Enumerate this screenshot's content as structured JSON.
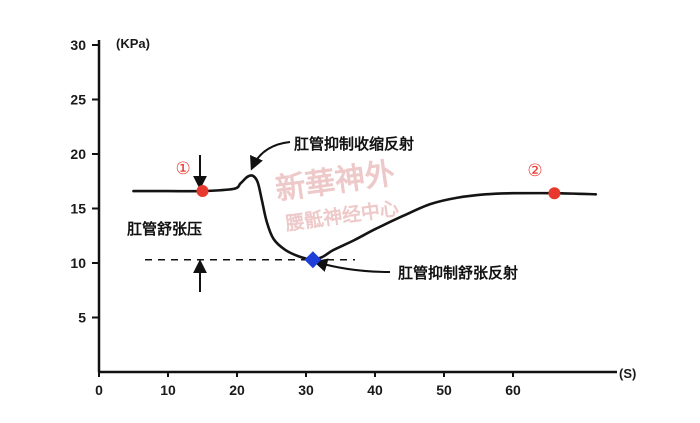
{
  "chart_data": {
    "type": "line",
    "y_unit": "(KPa)",
    "x_unit": "(S)",
    "xlim": [
      0,
      73
    ],
    "ylim": [
      0,
      30
    ],
    "x_ticks": [
      "0",
      "10",
      "20",
      "30",
      "40",
      "50",
      "60"
    ],
    "y_ticks": [
      "5",
      "10",
      "15",
      "20",
      "25",
      "30"
    ],
    "grid": false,
    "series": [
      {
        "x": [
          5,
          10,
          15,
          19.5,
          20.5,
          21.5,
          22.3,
          23.0,
          23.6,
          24.3,
          25.3,
          27,
          29,
          31,
          32.5,
          34,
          37,
          40,
          44,
          48,
          52,
          56,
          60,
          66,
          72
        ],
        "y": [
          16.6,
          16.6,
          16.6,
          16.8,
          17.3,
          17.9,
          18.0,
          17.4,
          15.8,
          13.8,
          12.2,
          11.2,
          10.6,
          10.3,
          10.6,
          11.2,
          12.1,
          13.1,
          14.3,
          15.4,
          16.0,
          16.3,
          16.4,
          16.4,
          16.3
        ]
      }
    ],
    "points": [
      {
        "label": "①",
        "x": 15,
        "y": 16.6,
        "color": "#e8392f"
      },
      {
        "label": "②",
        "x": 66,
        "y": 16.4,
        "color": "#e8392f"
      },
      {
        "label": "",
        "x": 31,
        "y": 10.3,
        "color": "#1f3fd6"
      }
    ],
    "reference_line_y": 10.3,
    "annotations": {
      "contraction_reflex": "肛管抑制收缩反射",
      "relaxation_reflex": "肛管抑制舒张反射",
      "relaxation_pressure": "肛管舒张压"
    },
    "watermark": [
      "新華神外",
      "腰骶神经中心"
    ]
  }
}
